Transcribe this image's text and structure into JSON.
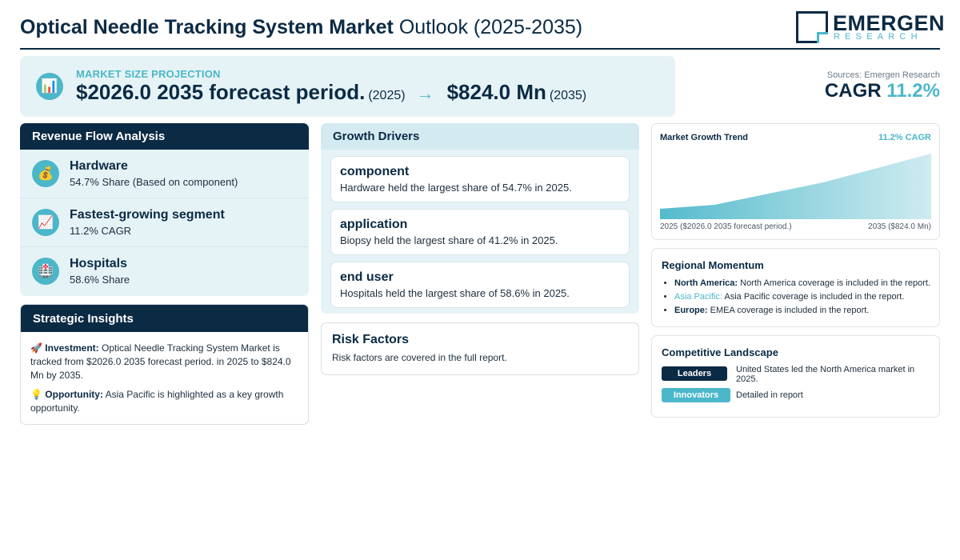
{
  "header": {
    "title_bold": "Optical Needle Tracking System Market",
    "title_rest": "Outlook (2025-2035)",
    "logo_name": "EMERGEN",
    "logo_sub": "RESEARCH"
  },
  "projection": {
    "icon": "chart-icon",
    "label": "MARKET SIZE PROJECTION",
    "start_value": "$2026.0 2035 forecast period.",
    "start_year": "(2025)",
    "arrow": "→",
    "end_value": "$824.0 Mn",
    "end_year": "(2035)"
  },
  "sources": "Sources: Emergen Research",
  "cagr": {
    "label": "CAGR",
    "value": "11.2%"
  },
  "revenue_flow": {
    "title": "Revenue Flow Analysis",
    "items": [
      {
        "icon": "money-bag-icon",
        "glyph": "💰",
        "title": "Hardware",
        "sub": "54.7% Share (Based on component)"
      },
      {
        "icon": "trend-up-icon",
        "glyph": "📈",
        "title": "Fastest-growing segment",
        "sub": "11.2% CAGR"
      },
      {
        "icon": "hospital-icon",
        "glyph": "🏥",
        "title": "Hospitals",
        "sub": "58.6% Share"
      }
    ]
  },
  "strategic": {
    "title": "Strategic Insights",
    "investment_icon": "🚀",
    "investment_label": "Investment:",
    "investment_text": "Optical Needle Tracking System Market is tracked from $2026.0 2035 forecast period. in 2025 to $824.0 Mn by 2035.",
    "opportunity_icon": "💡",
    "opportunity_label": "Opportunity:",
    "opportunity_text": "Asia Pacific is highlighted as a key growth opportunity."
  },
  "growth_drivers": {
    "title": "Growth Drivers",
    "cards": [
      {
        "title": "component",
        "desc": "Hardware held the largest share of 54.7% in 2025."
      },
      {
        "title": "application",
        "desc": "Biopsy held the largest share of 41.2% in 2025."
      },
      {
        "title": "end user",
        "desc": "Hospitals held the largest share of 58.6% in 2025."
      }
    ]
  },
  "risk": {
    "title": "Risk Factors",
    "desc": "Risk factors are covered in the full report."
  },
  "trend": {
    "title": "Market Growth Trend",
    "cagr": "11.2% CAGR",
    "left_label": "2025 ($2026.0 2035 forecast period.)",
    "right_label": "2035 ($824.0 Mn)",
    "colors": {
      "fill_top": "#4bb7c9",
      "fill_bottom": "#d8eff3"
    }
  },
  "regional": {
    "title": "Regional Momentum",
    "items": [
      {
        "name": "North America:",
        "text": "North America coverage is included in the report."
      },
      {
        "name": "Asia Pacific:",
        "text": "Asia Pacific coverage is included in the report."
      },
      {
        "name": "Europe:",
        "text": "EMEA coverage is included in the report."
      }
    ]
  },
  "competitive": {
    "title": "Competitive Landscape",
    "leaders_label": "Leaders",
    "leaders_text": "United States led the North America market in 2025.",
    "innovators_label": "Innovators",
    "innovators_text": "Detailed in report"
  }
}
